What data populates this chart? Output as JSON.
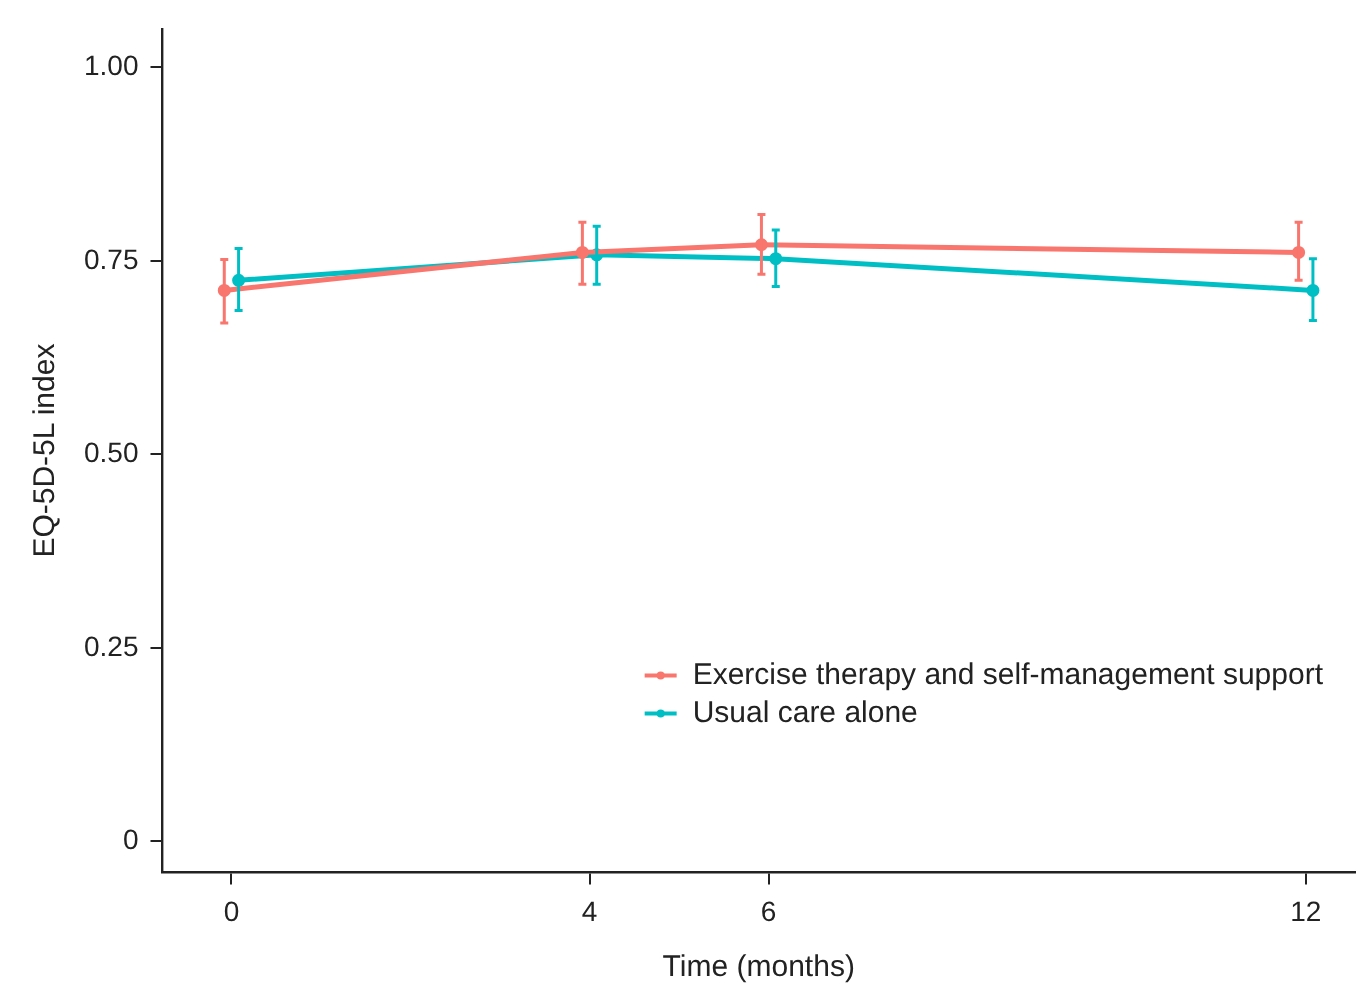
{
  "chart_data": {
    "type": "line",
    "xlabel": "Time (months)",
    "ylabel": "EQ-5D-5L index",
    "xlim": [
      -0.77,
      12.55
    ],
    "xticks": [
      0,
      4,
      6,
      12
    ],
    "ylim": [
      -0.04,
      1.05
    ],
    "yticks": [
      {
        "value": 0,
        "label": "0"
      },
      {
        "value": 0.25,
        "label": "0.25"
      },
      {
        "value": 0.5,
        "label": "0.50"
      },
      {
        "value": 0.75,
        "label": "0.75"
      },
      {
        "value": 1,
        "label": "1.00"
      }
    ],
    "series": [
      {
        "name": "Exercise therapy and self-management support",
        "color": "#f8766d",
        "x": [
          -0.08,
          3.92,
          5.92,
          11.92
        ],
        "values": [
          0.712,
          0.761,
          0.771,
          0.761
        ],
        "errors": [
          [
            0.67,
            0.752
          ],
          [
            0.72,
            0.8
          ],
          [
            0.733,
            0.81
          ],
          [
            0.725,
            0.8
          ]
        ]
      },
      {
        "name": "Usual care alone",
        "color": "#00bfc4",
        "x": [
          0.08,
          4.08,
          6.08,
          12.08
        ],
        "values": [
          0.725,
          0.758,
          0.753,
          0.712
        ],
        "errors": [
          [
            0.686,
            0.766
          ],
          [
            0.72,
            0.795
          ],
          [
            0.717,
            0.79
          ],
          [
            0.673,
            0.753
          ]
        ]
      }
    ],
    "legend": "bottom right",
    "marker": "circle",
    "line_style": "solid",
    "grid": false
  }
}
